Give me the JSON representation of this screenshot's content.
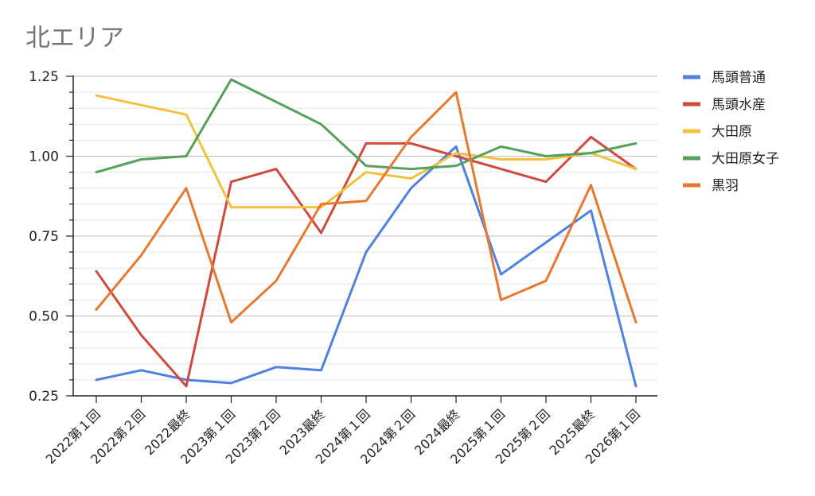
{
  "chart_data": {
    "type": "line",
    "title": "北エリア",
    "categories": [
      "2022第１回",
      "2022第２回",
      "2022最終",
      "2023第１回",
      "2023第２回",
      "2023最終",
      "2024第１回",
      "2024第２回",
      "2024最終",
      "2025第１回",
      "2025第２回",
      "2025最終",
      "2026第１回"
    ],
    "ylim": [
      0.25,
      1.25
    ],
    "yticks": [
      "0.25",
      "0.50",
      "0.75",
      "1.00",
      "1.25"
    ],
    "grid": true,
    "legend_position": "right",
    "series": [
      {
        "name": "馬頭普通",
        "color": "#4f81e0",
        "values": [
          0.3,
          0.33,
          0.3,
          0.29,
          0.34,
          0.33,
          0.7,
          0.9,
          1.03,
          0.63,
          0.73,
          0.83,
          0.28
        ]
      },
      {
        "name": "馬頭水産",
        "color": "#d04b3c",
        "values": [
          0.64,
          0.44,
          0.28,
          0.92,
          0.96,
          0.76,
          1.04,
          1.04,
          1.0,
          0.96,
          0.92,
          1.06,
          0.96
        ]
      },
      {
        "name": "大田原",
        "color": "#f2c23e",
        "values": [
          1.19,
          1.16,
          1.13,
          0.84,
          0.84,
          0.84,
          0.95,
          0.93,
          1.01,
          0.99,
          0.99,
          1.01,
          0.96
        ]
      },
      {
        "name": "大田原女子",
        "color": "#55a05a",
        "values": [
          0.95,
          0.99,
          1.0,
          1.24,
          1.17,
          1.1,
          0.97,
          0.96,
          0.97,
          1.03,
          1.0,
          1.01,
          1.04
        ]
      },
      {
        "name": "黒羽",
        "color": "#e8782f",
        "values": [
          0.52,
          0.69,
          0.9,
          0.48,
          0.61,
          0.85,
          0.86,
          1.06,
          1.2,
          0.55,
          0.61,
          0.91,
          0.48
        ]
      }
    ]
  }
}
